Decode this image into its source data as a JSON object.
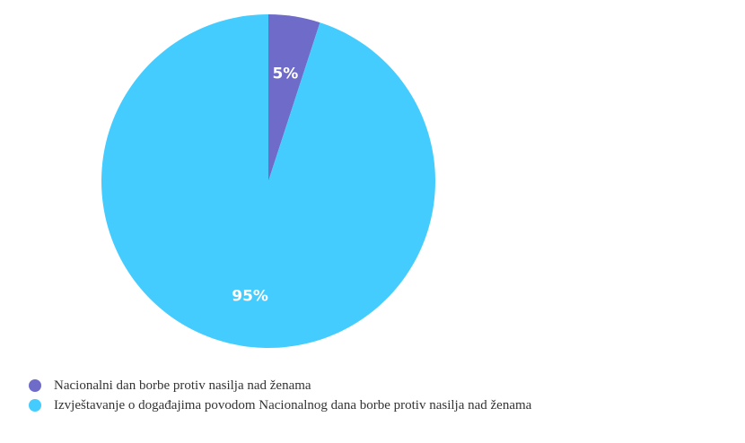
{
  "chart_data": {
    "type": "pie",
    "slices": [
      {
        "label": "Nacionalni dan borbe protiv nasilja nad ženama",
        "value": 5,
        "display": "5%",
        "color": "#6f6cc9"
      },
      {
        "label": "Izvještavanje o događajima povodom Nacionalnog dana borbe protiv nasilja nad ženama",
        "value": 95,
        "display": "95%",
        "color": "#45ccff"
      }
    ],
    "legend_position": "bottom-left"
  }
}
